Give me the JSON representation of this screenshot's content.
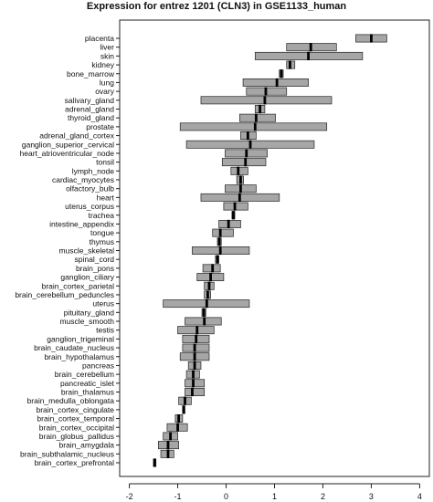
{
  "chart_data": {
    "type": "boxplot",
    "title": "Expression for entrez 1201 (CLN3) in GSE1133_human",
    "xlabel": "",
    "ylabel": "",
    "xlim": [
      -2.2,
      4.2
    ],
    "x_ticks": [
      -2,
      -1,
      0,
      1,
      2,
      3,
      4
    ],
    "grid": false,
    "categories": [
      {
        "label": "placenta",
        "low": 2.68,
        "high": 3.32,
        "median": 3.0
      },
      {
        "label": "liver",
        "low": 1.25,
        "high": 2.28,
        "median": 1.75
      },
      {
        "label": "skin",
        "low": 0.6,
        "high": 2.82,
        "median": 1.7
      },
      {
        "label": "kidney",
        "low": 1.25,
        "high": 1.42,
        "median": 1.32
      },
      {
        "label": "bone_marrow",
        "low": 1.1,
        "high": 1.18,
        "median": 1.14
      },
      {
        "label": "lung",
        "low": 0.35,
        "high": 1.7,
        "median": 1.05
      },
      {
        "label": "ovary",
        "low": 0.42,
        "high": 1.25,
        "median": 0.82
      },
      {
        "label": "salivary_gland",
        "low": -0.52,
        "high": 2.18,
        "median": 0.8
      },
      {
        "label": "adrenal_gland",
        "low": 0.6,
        "high": 0.8,
        "median": 0.7
      },
      {
        "label": "thyroid_gland",
        "low": 0.28,
        "high": 1.02,
        "median": 0.62
      },
      {
        "label": "prostate",
        "low": -0.95,
        "high": 2.08,
        "median": 0.6
      },
      {
        "label": "adrenal_gland_cortex",
        "low": 0.3,
        "high": 0.62,
        "median": 0.45
      },
      {
        "label": "ganglion_superior_cervical",
        "low": -0.82,
        "high": 1.82,
        "median": 0.5
      },
      {
        "label": "heart_atrioventricular_node",
        "low": -0.02,
        "high": 0.85,
        "median": 0.42
      },
      {
        "label": "tonsil",
        "low": -0.08,
        "high": 0.82,
        "median": 0.4
      },
      {
        "label": "lymph_node",
        "low": 0.1,
        "high": 0.45,
        "median": 0.25
      },
      {
        "label": "cardiac_myocytes",
        "low": 0.22,
        "high": 0.36,
        "median": 0.3
      },
      {
        "label": "olfactory_bulb",
        "low": -0.02,
        "high": 0.62,
        "median": 0.3
      },
      {
        "label": "heart",
        "low": -0.52,
        "high": 1.1,
        "median": 0.28
      },
      {
        "label": "uterus_corpus",
        "low": -0.05,
        "high": 0.45,
        "median": 0.18
      },
      {
        "label": "trachea",
        "low": 0.12,
        "high": 0.18,
        "median": 0.15
      },
      {
        "label": "intestine_appendix",
        "low": -0.15,
        "high": 0.3,
        "median": 0.05
      },
      {
        "label": "tongue",
        "low": -0.28,
        "high": 0.15,
        "median": -0.12
      },
      {
        "label": "thymus",
        "low": -0.18,
        "high": -0.1,
        "median": -0.14
      },
      {
        "label": "muscle_skeletal",
        "low": -0.7,
        "high": 0.48,
        "median": -0.12
      },
      {
        "label": "spinal_cord",
        "low": -0.22,
        "high": -0.15,
        "median": -0.18
      },
      {
        "label": "brain_pons",
        "low": -0.48,
        "high": -0.12,
        "median": -0.28
      },
      {
        "label": "ganglion_ciliary",
        "low": -0.6,
        "high": -0.05,
        "median": -0.32
      },
      {
        "label": "brain_cortex_parietal",
        "low": -0.45,
        "high": -0.25,
        "median": -0.35
      },
      {
        "label": "brain_cerebellum_peduncles",
        "low": -0.45,
        "high": -0.32,
        "median": -0.38
      },
      {
        "label": "uterus",
        "low": -1.3,
        "high": 0.48,
        "median": -0.4
      },
      {
        "label": "pituitary_gland",
        "low": -0.5,
        "high": -0.42,
        "median": -0.46
      },
      {
        "label": "muscle_smooth",
        "low": -0.85,
        "high": -0.1,
        "median": -0.45
      },
      {
        "label": "testis",
        "low": -1.0,
        "high": -0.25,
        "median": -0.6
      },
      {
        "label": "ganglion_trigeminal",
        "low": -0.9,
        "high": -0.35,
        "median": -0.62
      },
      {
        "label": "brain_caudate_nucleus",
        "low": -0.9,
        "high": -0.35,
        "median": -0.65
      },
      {
        "label": "brain_hypothalamus",
        "low": -0.95,
        "high": -0.35,
        "median": -0.65
      },
      {
        "label": "pancreas",
        "low": -0.78,
        "high": -0.52,
        "median": -0.65
      },
      {
        "label": "brain_cerebellum",
        "low": -0.82,
        "high": -0.55,
        "median": -0.68
      },
      {
        "label": "pancreatic_islet",
        "low": -0.85,
        "high": -0.45,
        "median": -0.68
      },
      {
        "label": "brain_thalamus",
        "low": -0.85,
        "high": -0.45,
        "median": -0.7
      },
      {
        "label": "brain_medulla_oblongata",
        "low": -0.98,
        "high": -0.72,
        "median": -0.85
      },
      {
        "label": "brain_cortex_cingulate",
        "low": -0.9,
        "high": -0.85,
        "median": -0.88
      },
      {
        "label": "brain_cortex_temporal",
        "low": -1.05,
        "high": -0.9,
        "median": -0.98
      },
      {
        "label": "brain_cortex_occipital",
        "low": -1.22,
        "high": -0.8,
        "median": -1.0
      },
      {
        "label": "brain_globus_pallidus",
        "low": -1.3,
        "high": -1.0,
        "median": -1.15
      },
      {
        "label": "brain_amygdala",
        "low": -1.4,
        "high": -0.98,
        "median": -1.2
      },
      {
        "label": "brain_subthalamic_nucleus",
        "low": -1.35,
        "high": -1.08,
        "median": -1.2
      },
      {
        "label": "brain_cortex_prefrontal",
        "low": -1.5,
        "high": -1.45,
        "median": -1.48
      }
    ]
  },
  "style": {
    "box_fill": "#a6a6a6",
    "box_stroke": "#222222",
    "median_color": "#000000",
    "axis_color": "#222222"
  }
}
